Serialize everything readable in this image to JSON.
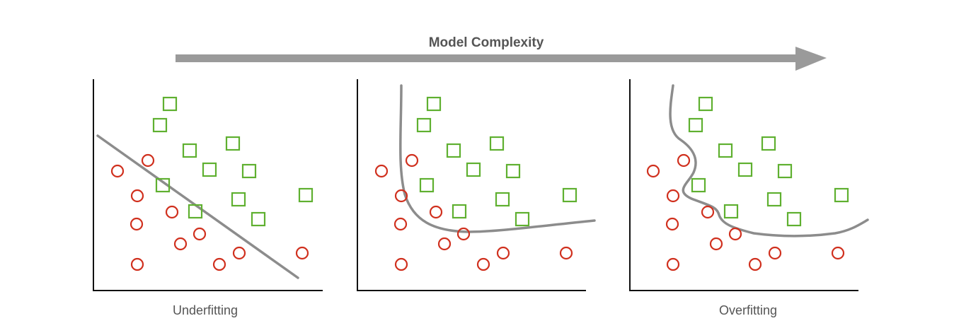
{
  "header": {
    "title": "Model Complexity"
  },
  "panels": [
    {
      "label": "Underfitting"
    },
    {
      "label": ""
    },
    {
      "label": "Overfitting"
    }
  ],
  "colors": {
    "circle": "#d0301e",
    "square": "#5fb030",
    "curve": "#8c8c8c",
    "arrow": "#9a9a9a",
    "axis": "#111111",
    "text": "#555555"
  },
  "icons": {
    "class_a": "red-circle-marker",
    "class_b": "green-square-marker"
  }
}
